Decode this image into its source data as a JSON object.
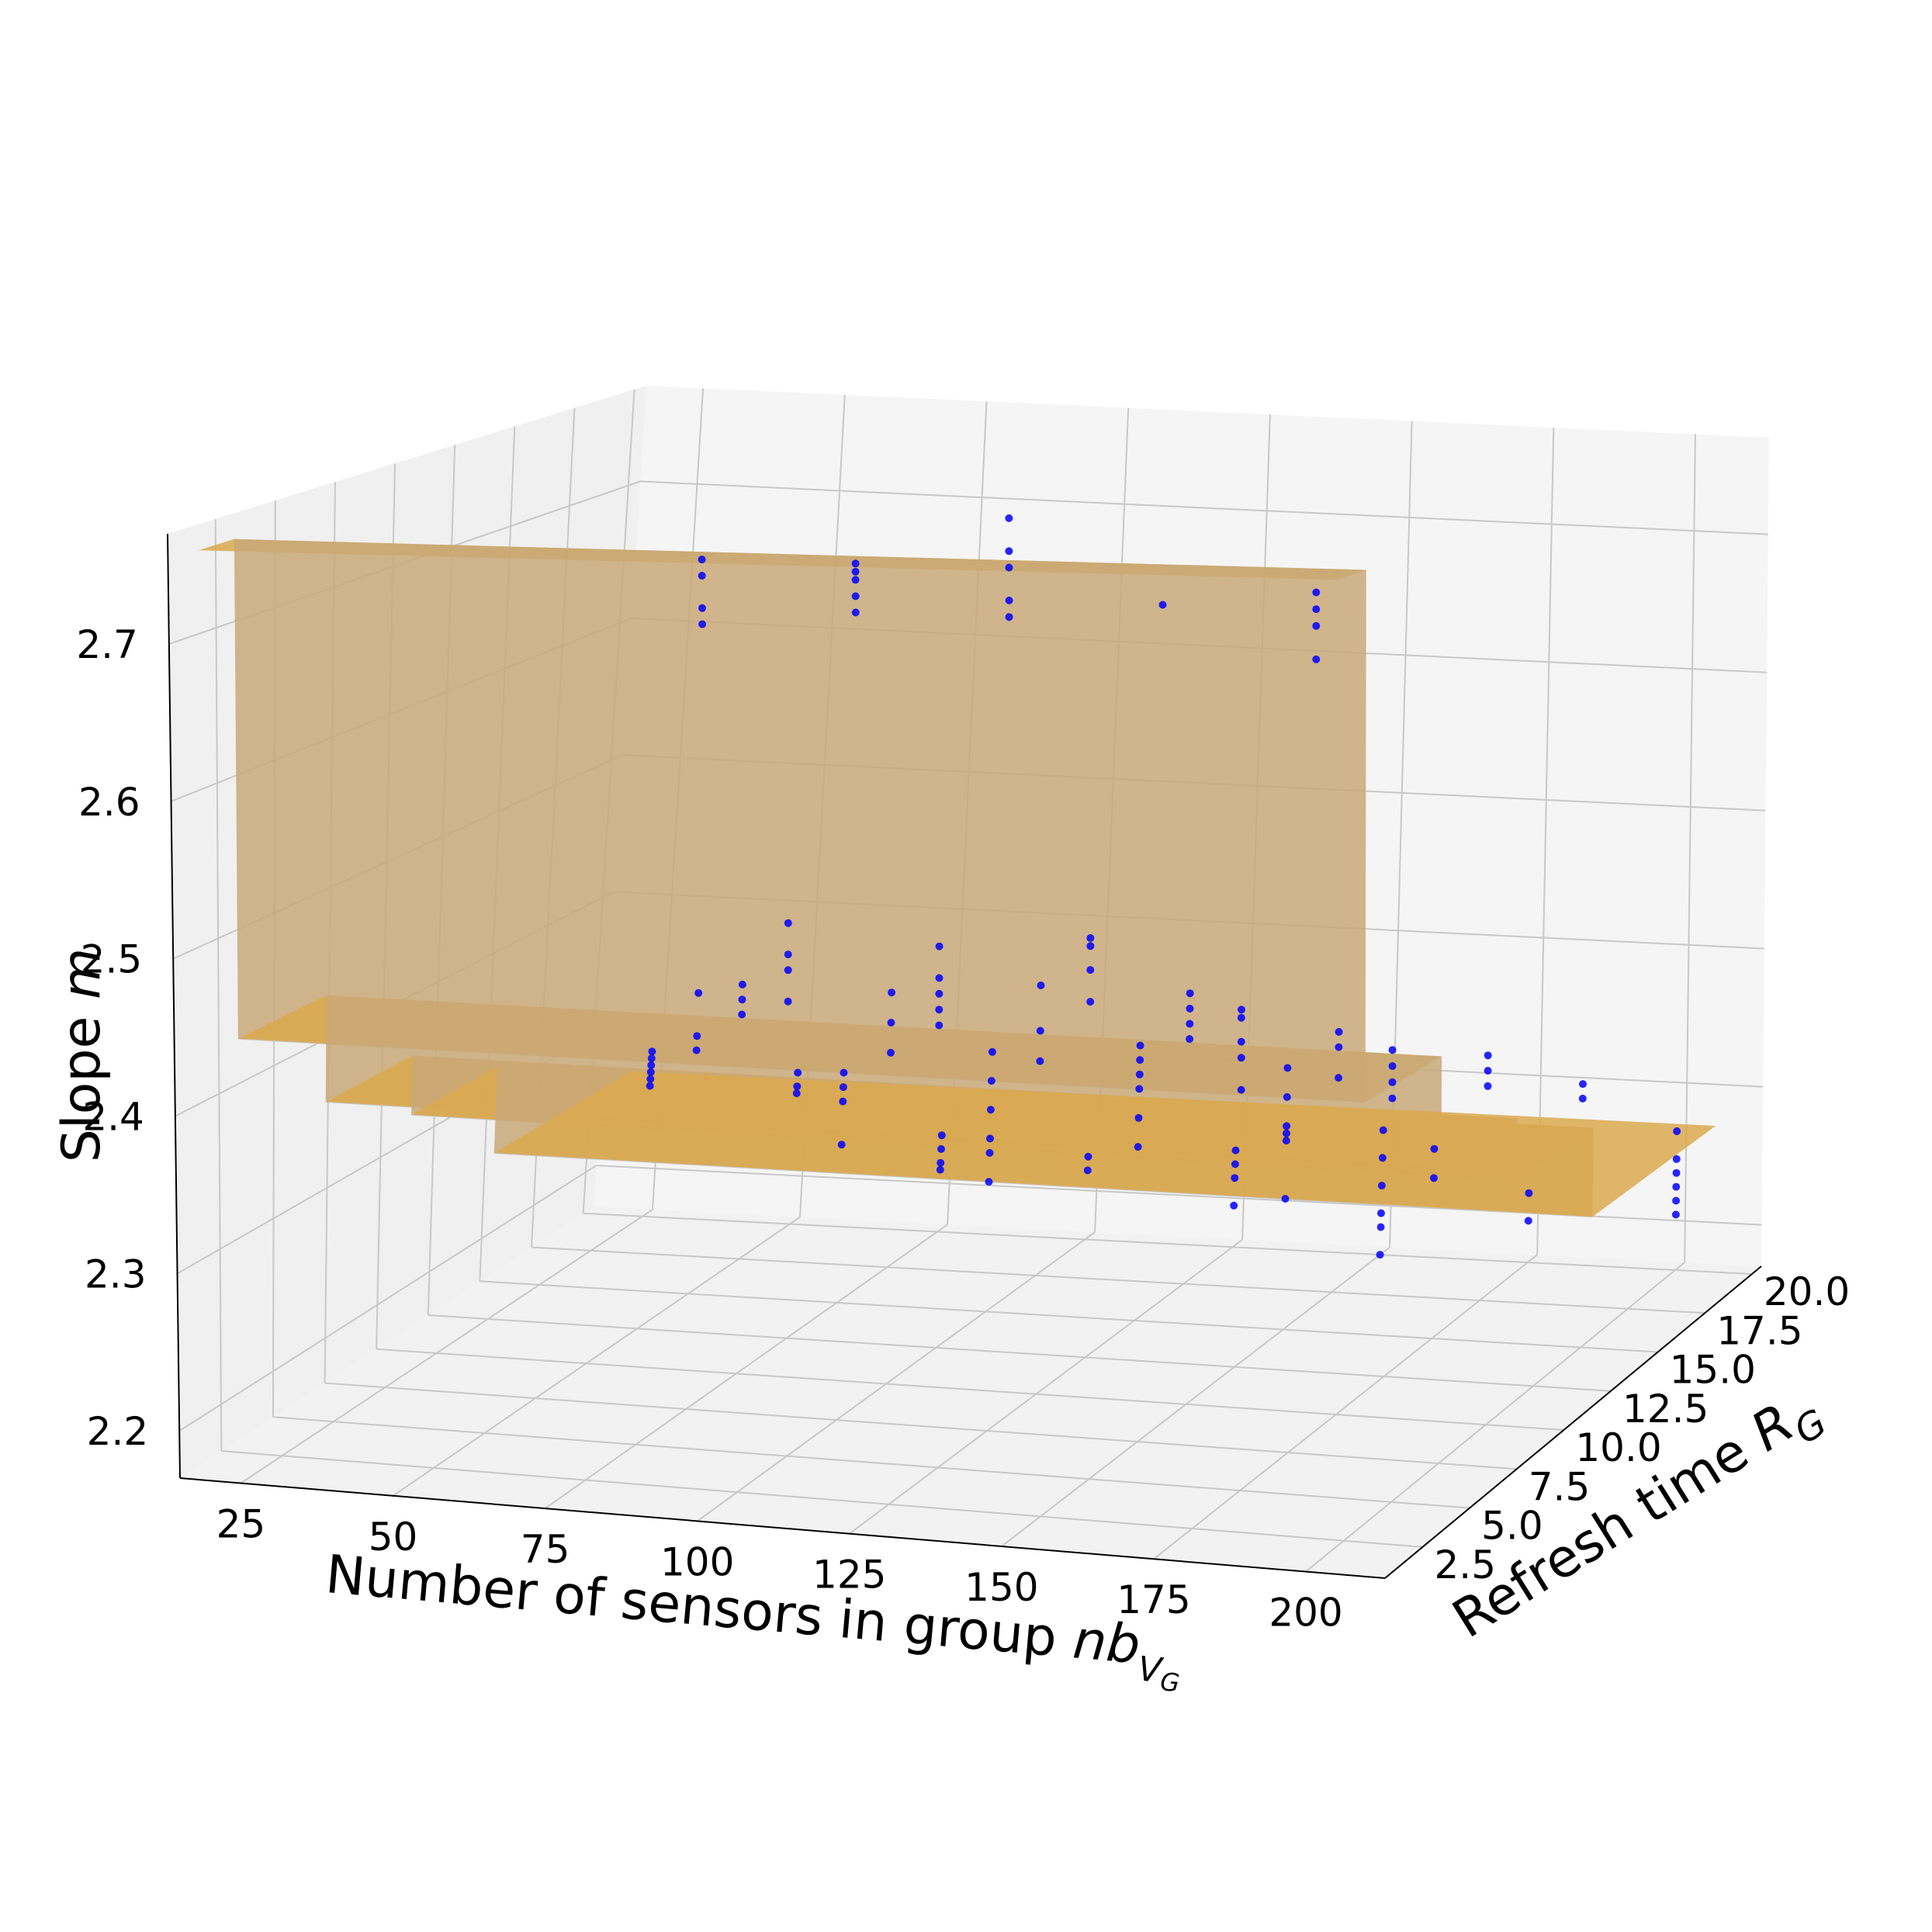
{
  "chart_data": {
    "type": "surface3d+scatter",
    "xlabel": "Number of sensors in group ",
    "xlabel_var": "nb",
    "xlabel_sub": "V",
    "xlabel_subsub": "G",
    "ylabel": "Refresh time ",
    "ylabel_var": "R",
    "ylabel_sub": "G",
    "zlabel": "Slope ",
    "zlabel_var": "m",
    "x_ticks": [
      25,
      50,
      75,
      100,
      125,
      150,
      175,
      200
    ],
    "y_ticks": [
      "2.5",
      "5.0",
      "7.5",
      "10.0",
      "12.5",
      "15.0",
      "17.5",
      "20.0"
    ],
    "z_ticks": [
      "2.2",
      "2.3",
      "2.4",
      "2.5",
      "2.6",
      "2.7"
    ],
    "xlim": [
      15,
      213
    ],
    "ylim": [
      0.5,
      20.5
    ],
    "zlim": [
      2.17,
      2.77
    ],
    "surface_color": "#daa94e",
    "surface_edge_color": "#b8860b",
    "point_color": "#0000ff",
    "grid": true,
    "surface": {
      "description_levels_by_refresh_time": [
        {
          "y": [
            0.5,
            2.0
          ],
          "z": 2.76
        },
        {
          "y": [
            2.0,
            6.0
          ],
          "z": 2.44
        },
        {
          "y": [
            6.0,
            10.0
          ],
          "z": 2.37
        },
        {
          "y": [
            10.0,
            14.0
          ],
          "z": 2.33
        },
        {
          "y": [
            14.0,
            20.5
          ],
          "z": 2.27
        }
      ]
    },
    "points": [
      {
        "x": 25,
        "y": 20,
        "z": [
          2.29,
          2.285,
          2.28,
          2.275,
          2.27,
          2.265
        ]
      },
      {
        "x": 50,
        "y": 20,
        "z": [
          2.28,
          2.27,
          2.265
        ]
      },
      {
        "x": 50,
        "y": 15,
        "z": [
          2.38,
          2.35,
          2.34
        ]
      },
      {
        "x": 75,
        "y": 20,
        "z": [
          2.24,
          2.23,
          2.22,
          2.215
        ]
      },
      {
        "x": 75,
        "y": 15,
        "z": [
          2.33,
          2.32,
          2.31,
          2.28
        ]
      },
      {
        "x": 75,
        "y": 10,
        "z": [
          2.43,
          2.42,
          2.41
        ]
      },
      {
        "x": 100,
        "y": 20,
        "z": [
          2.23,
          2.22
        ]
      },
      {
        "x": 100,
        "y": 15,
        "z": [
          2.35,
          2.33,
          2.31,
          2.29,
          2.28,
          2.26
        ]
      },
      {
        "x": 100,
        "y": 10,
        "z": [
          2.43,
          2.41,
          2.39
        ]
      },
      {
        "x": 100,
        "y": 5,
        "z": [
          2.51,
          2.49,
          2.48,
          2.46
        ]
      },
      {
        "x": 100,
        "y": 1,
        "z": [
          2.76,
          2.75,
          2.73,
          2.72
        ]
      },
      {
        "x": 125,
        "y": 20,
        "z": [
          2.24,
          2.23,
          2.22,
          2.2
        ]
      },
      {
        "x": 125,
        "y": 15,
        "z": [
          2.36,
          2.35,
          2.34,
          2.33,
          2.31,
          2.29
        ]
      },
      {
        "x": 125,
        "y": 10,
        "z": [
          2.44,
          2.41,
          2.39
        ]
      },
      {
        "x": 125,
        "y": 5,
        "z": [
          2.5,
          2.48,
          2.47,
          2.46,
          2.45
        ]
      },
      {
        "x": 125,
        "y": 1,
        "z": [
          2.76,
          2.755,
          2.75,
          2.74,
          2.73
        ]
      },
      {
        "x": 150,
        "y": 20,
        "z": [
          2.26,
          2.24,
          2.22,
          2.2,
          2.19,
          2.17
        ]
      },
      {
        "x": 150,
        "y": 15,
        "z": [
          2.35,
          2.33,
          2.31,
          2.305,
          2.3,
          2.26
        ]
      },
      {
        "x": 150,
        "y": 10,
        "z": [
          2.44,
          2.43,
          2.42,
          2.41
        ]
      },
      {
        "x": 150,
        "y": 5,
        "z": [
          2.51,
          2.505,
          2.49,
          2.47
        ]
      },
      {
        "x": 150,
        "y": 1,
        "z": [
          2.79,
          2.77,
          2.76,
          2.74,
          2.73
        ]
      },
      {
        "x": 175,
        "y": 20,
        "z": [
          2.22,
          2.2
        ]
      },
      {
        "x": 175,
        "y": 15,
        "z": [
          2.3,
          2.28
        ]
      },
      {
        "x": 175,
        "y": 10,
        "z": [
          2.42,
          2.41,
          2.39
        ]
      },
      {
        "x": 175,
        "y": 5,
        "z": [
          2.47,
          2.465,
          2.45,
          2.44,
          2.42
        ]
      },
      {
        "x": 175,
        "y": 1,
        "z": [
          2.74
        ]
      },
      {
        "x": 200,
        "y": 20,
        "z": [
          2.27,
          2.25,
          2.24,
          2.23,
          2.22,
          2.21
        ]
      },
      {
        "x": 200,
        "y": 15,
        "z": [
          2.35,
          2.34
        ]
      },
      {
        "x": 200,
        "y": 10,
        "z": [
          2.41,
          2.4,
          2.39
        ]
      },
      {
        "x": 200,
        "y": 5,
        "z": [
          2.45,
          2.44,
          2.43,
          2.42
        ]
      },
      {
        "x": 200,
        "y": 1,
        "z": [
          2.75,
          2.74,
          2.73,
          2.71
        ]
      }
    ]
  }
}
